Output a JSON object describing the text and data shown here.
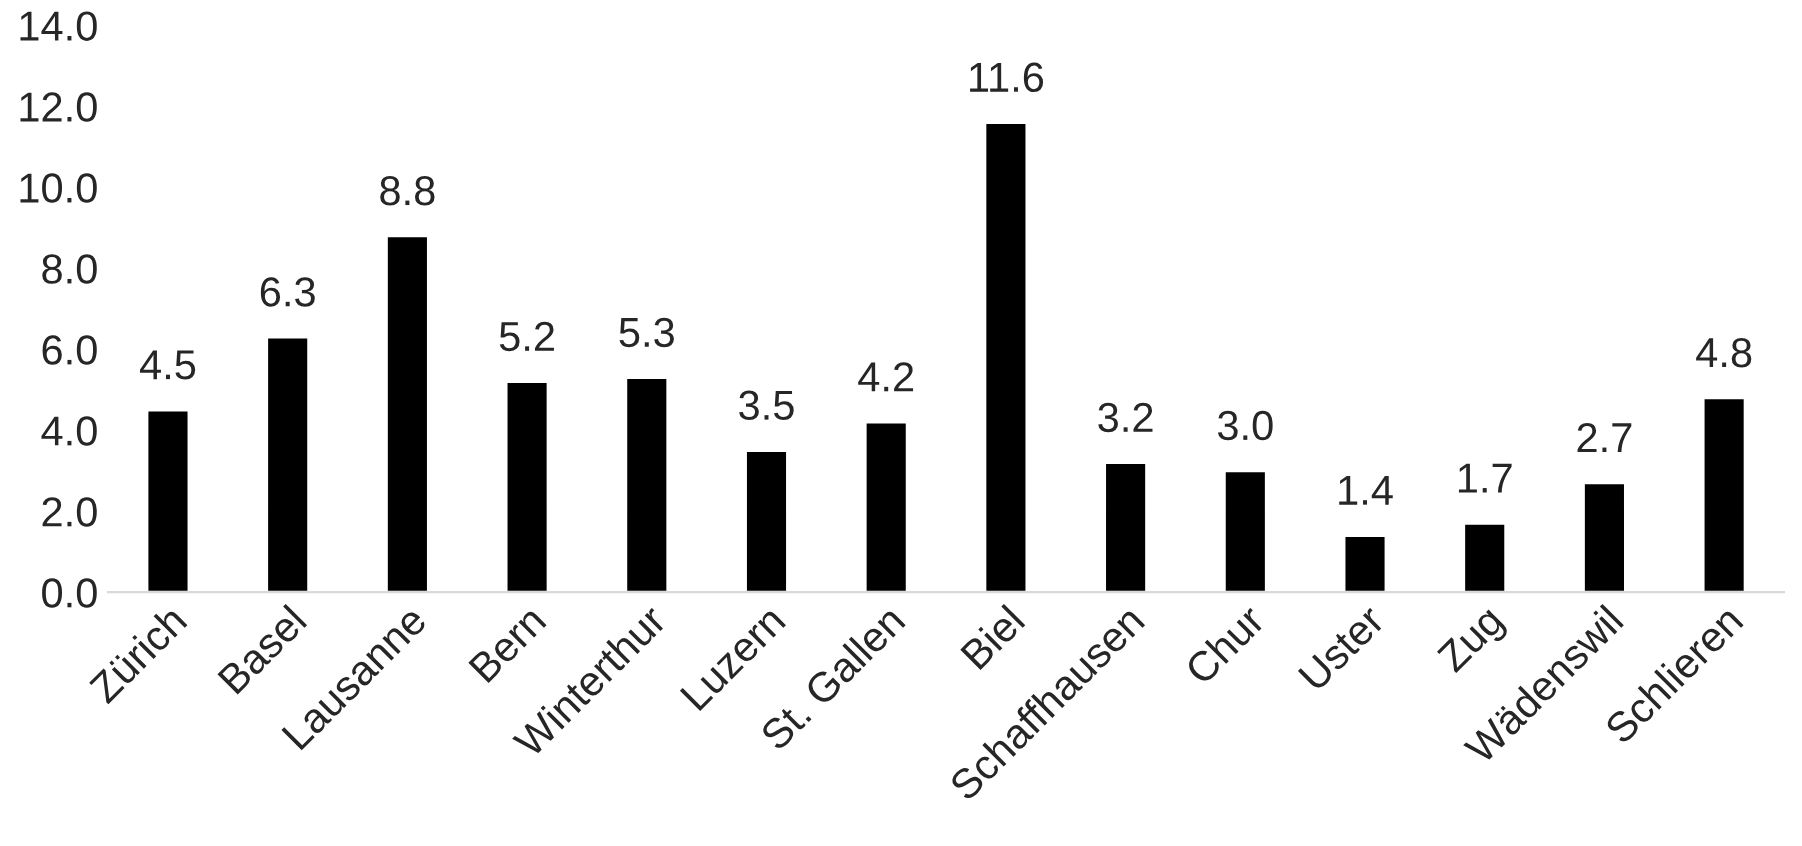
{
  "chart_data": {
    "type": "bar",
    "categories": [
      "Zürich",
      "Basel",
      "Lausanne",
      "Bern",
      "Winterthur",
      "Luzern",
      "St. Gallen",
      "Biel",
      "Schaffhausen",
      "Chur",
      "Uster",
      "Zug",
      "Wädenswil",
      "Schlieren"
    ],
    "values": [
      4.5,
      6.3,
      8.8,
      5.2,
      5.3,
      3.5,
      4.2,
      11.6,
      3.2,
      3.0,
      1.4,
      1.7,
      2.7,
      4.8
    ],
    "value_labels": [
      "4.5",
      "6.3",
      "8.8",
      "5.2",
      "5.3",
      "3.5",
      "4.2",
      "11.6",
      "3.2",
      "3.0",
      "1.4",
      "1.7",
      "2.7",
      "4.8"
    ],
    "color": "#000000",
    "ylim": [
      0,
      14
    ],
    "yticks": [
      {
        "value": 0,
        "label": "0.0"
      },
      {
        "value": 2,
        "label": "2.0"
      },
      {
        "value": 4,
        "label": "4.0"
      },
      {
        "value": 6,
        "label": "6.0"
      },
      {
        "value": 8,
        "label": "8.0"
      },
      {
        "value": 10,
        "label": "10.0"
      },
      {
        "value": 12,
        "label": "12.0"
      },
      {
        "value": 14,
        "label": "14.0"
      }
    ],
    "grid": false,
    "legend": false
  }
}
